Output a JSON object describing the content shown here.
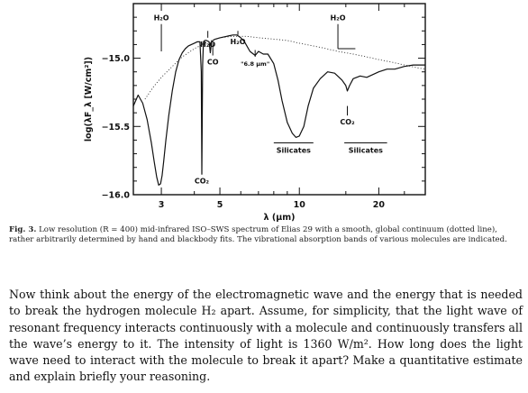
{
  "chart_data": {
    "type": "line",
    "title": "",
    "xlabel": "λ (μm)",
    "ylabel": "log(λF_λ [W/cm²])",
    "x_scale": "log",
    "xlim": [
      2.35,
      30
    ],
    "ylim": [
      -16.0,
      -14.6
    ],
    "xticks": [
      3,
      5,
      10,
      20
    ],
    "yticks": [
      -16.0,
      -15.5,
      -15.0
    ],
    "ytick_labels": [
      "−16.0",
      "−15.5",
      "−15.0"
    ],
    "series": [
      {
        "style": "solid",
        "x": [
          2.35,
          2.45,
          2.55,
          2.65,
          2.75,
          2.82,
          2.88,
          2.93,
          2.98,
          3.02,
          3.06,
          3.12,
          3.2,
          3.3,
          3.4,
          3.5,
          3.6,
          3.7,
          3.8,
          3.9,
          4.0,
          4.1,
          4.2,
          4.25,
          4.27,
          4.3,
          4.33,
          4.38,
          4.45,
          4.55,
          4.6,
          4.65,
          4.7,
          4.8,
          5.0,
          5.3,
          5.6,
          5.8,
          6.0,
          6.2,
          6.5,
          6.8,
          7.0,
          7.3,
          7.6,
          8.0,
          8.3,
          8.6,
          9.0,
          9.4,
          9.7,
          10.0,
          10.4,
          10.8,
          11.3,
          12.0,
          12.8,
          13.6,
          14.5,
          15.0,
          15.2,
          15.5,
          16.0,
          17.0,
          18.0,
          19.0,
          20.0,
          21.5,
          23.0,
          25.0,
          27.0,
          30.0
        ],
        "y": [
          -15.35,
          -15.27,
          -15.33,
          -15.45,
          -15.62,
          -15.76,
          -15.87,
          -15.93,
          -15.92,
          -15.86,
          -15.76,
          -15.6,
          -15.42,
          -15.24,
          -15.1,
          -15.01,
          -14.96,
          -14.93,
          -14.91,
          -14.9,
          -14.89,
          -14.88,
          -14.88,
          -15.1,
          -15.85,
          -15.05,
          -14.88,
          -14.87,
          -14.87,
          -14.88,
          -14.96,
          -14.88,
          -14.87,
          -14.86,
          -14.85,
          -14.84,
          -14.83,
          -14.83,
          -14.85,
          -14.88,
          -14.95,
          -14.98,
          -14.95,
          -14.97,
          -14.97,
          -15.04,
          -15.16,
          -15.31,
          -15.47,
          -15.55,
          -15.58,
          -15.57,
          -15.5,
          -15.35,
          -15.22,
          -15.15,
          -15.1,
          -15.11,
          -15.16,
          -15.2,
          -15.24,
          -15.2,
          -15.15,
          -15.13,
          -15.14,
          -15.12,
          -15.1,
          -15.08,
          -15.08,
          -15.06,
          -15.05,
          -15.05
        ]
      },
      {
        "style": "dotted",
        "x": [
          2.6,
          2.8,
          3.0,
          3.3,
          3.6,
          4.0,
          4.5,
          5.0,
          5.6,
          6.3,
          7.0,
          8.0,
          9.0,
          10.0,
          12.0,
          14.0,
          16.0,
          18.0,
          20.0,
          22.5,
          25.0,
          28.0,
          30.0
        ],
        "y": [
          -15.3,
          -15.21,
          -15.14,
          -15.06,
          -14.99,
          -14.93,
          -14.88,
          -14.85,
          -14.84,
          -14.84,
          -14.85,
          -14.86,
          -14.87,
          -14.89,
          -14.92,
          -14.95,
          -14.97,
          -14.99,
          -15.01,
          -15.03,
          -15.05,
          -15.07,
          -15.08
        ]
      }
    ],
    "annotations": [
      {
        "text": "H₂O",
        "x": 3.0,
        "bar_top": -14.75,
        "bar_bottom": -14.95
      },
      {
        "text": "H₂O",
        "x": 4.5,
        "bar_top": -14.8,
        "bar_bottom": -14.85
      },
      {
        "text": "H₂O",
        "x": 5.85,
        "bar_top": -14.8,
        "bar_bottom": -14.83
      },
      {
        "text": "H₂O",
        "x": 14.0,
        "bar_top": -14.75,
        "bar_bottom": -14.93,
        "foot_to": 16.3
      },
      {
        "text": "CO",
        "x": 4.7,
        "bar_top": -14.89,
        "bar_bottom": -14.98
      },
      {
        "text": "\"6.8 μm\"",
        "x": 6.8,
        "bar_top": -14.94,
        "bar_bottom": -14.99
      },
      {
        "text": "CO₂",
        "x": 4.27,
        "bar_top": -15.85,
        "bar_bottom": -15.85
      },
      {
        "text": "CO₂",
        "x": 15.2,
        "bar_top": -15.35,
        "bar_bottom": -15.42
      },
      {
        "text": "Silicates",
        "x_from": 8.0,
        "x_to": 11.3,
        "y": -15.62
      },
      {
        "text": "Silicates",
        "x_from": 14.8,
        "x_to": 21.5,
        "y": -15.62
      }
    ]
  },
  "caption": {
    "label": "Fig. 3.",
    "text": " Low resolution (R = 400) mid-infrared ISO–SWS spectrum of Elias 29 with a smooth, global continuum (dotted line), rather arbitrarily determined by hand and blackbody fits. The vibrational absorption bands of various molecules are indicated."
  },
  "question": "Now think about the energy of the electromagnetic wave and the energy that is needed to break the hydrogen molecule H₂ apart. Assume, for simplicity, that the light wave of resonant frequency interacts continuously with a molecule and continuously transfers all the wave’s energy to it. The intensity of light is 1360 W/m². How long does the light wave need to interact with the molecule to break it apart? Make a quantitative estimate and explain briefly your reasoning."
}
